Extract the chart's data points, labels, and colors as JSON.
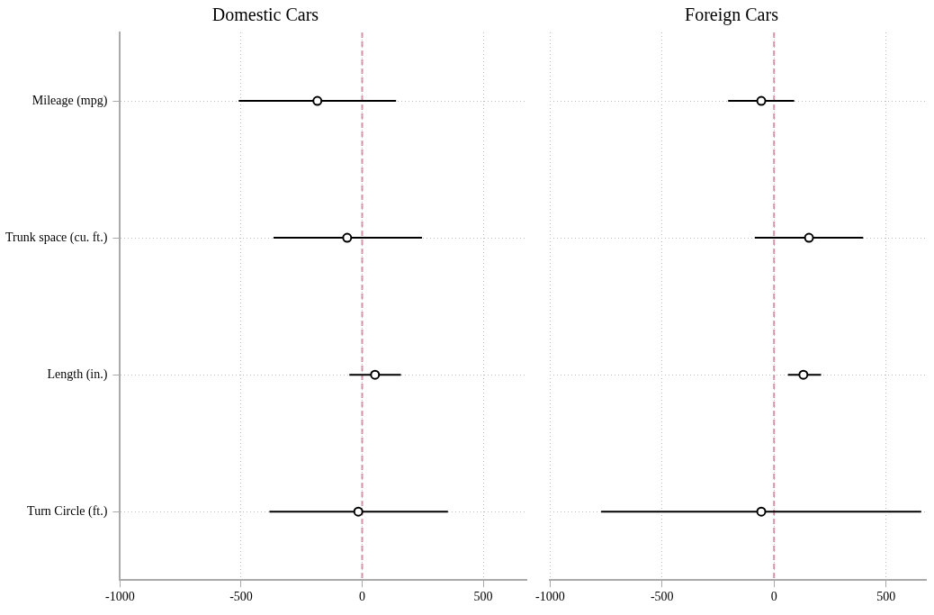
{
  "chart_data": [
    {
      "type": "scatter",
      "title": "Domestic Cars",
      "orientation": "horizontal",
      "categories": [
        "Mileage (mpg)",
        "Trunk space (cu. ft.)",
        "Length (in.)",
        "Turn Circle (ft.)"
      ],
      "series": [
        {
          "color": "#000000",
          "values": [
            -185,
            -62,
            53,
            -16
          ],
          "errors": [
            [
              -510,
              140
            ],
            [
              -366,
              247
            ],
            [
              -53,
              160
            ],
            [
              -383,
              354
            ]
          ]
        }
      ],
      "xlim": [
        -1000,
        680
      ],
      "xticks": [
        -1000,
        -500,
        0,
        500
      ],
      "grid": true,
      "marker": "circle",
      "ref_lines": [
        {
          "axis": "x",
          "value": 0,
          "color": "#d88ca8",
          "line_style": "dashed"
        }
      ]
    },
    {
      "type": "scatter",
      "title": "Foreign Cars",
      "orientation": "horizontal",
      "categories": [
        null,
        null,
        null,
        null
      ],
      "series": [
        {
          "color": "#000000",
          "values": [
            -57,
            156,
            131,
            -57
          ],
          "errors": [
            [
              -205,
              90
            ],
            [
              -86,
              398
            ],
            [
              62,
              210
            ],
            [
              -772,
              657
            ]
          ]
        }
      ],
      "xlim": [
        -1000,
        680
      ],
      "xticks": [
        -1000,
        -500,
        0,
        500
      ],
      "grid": true,
      "marker": "circle",
      "tick_labels": "x",
      "ref_lines": [
        {
          "axis": "x",
          "value": 0,
          "color": "#d88ca8",
          "line_style": "dashed"
        }
      ]
    }
  ]
}
